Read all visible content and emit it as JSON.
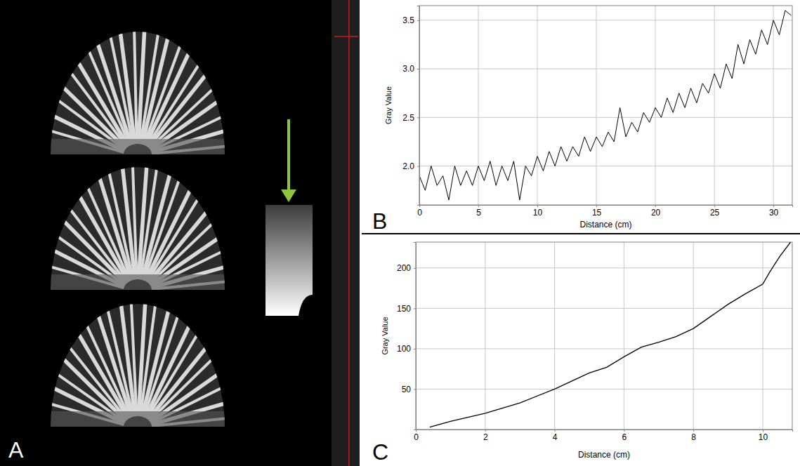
{
  "image_panel": {
    "panel_label": "A"
  },
  "chart_data": [
    {
      "type": "line",
      "panel_label": "B",
      "x_label": "Distance (cm)",
      "y_label": "Gray Value",
      "color": "#000000",
      "grid": true,
      "x": [
        0,
        0.5,
        1,
        1.5,
        2,
        2.5,
        3,
        3.5,
        4,
        4.5,
        5,
        5.5,
        6,
        6.5,
        7,
        7.5,
        8,
        8.5,
        9,
        9.5,
        10,
        10.5,
        11,
        11.5,
        12,
        12.5,
        13,
        13.5,
        14,
        14.5,
        15,
        15.5,
        16,
        16.5,
        17,
        17.5,
        18,
        18.5,
        19,
        19.5,
        20,
        20.5,
        21,
        21.5,
        22,
        22.5,
        23,
        23.5,
        24,
        24.5,
        25,
        25.5,
        26,
        26.5,
        27,
        27.5,
        28,
        28.5,
        29,
        29.5,
        30,
        30.5,
        31,
        31.5
      ],
      "values": [
        1.9,
        1.75,
        2.0,
        1.8,
        1.9,
        1.65,
        2.0,
        1.8,
        1.95,
        1.8,
        2.0,
        1.85,
        2.05,
        1.8,
        2.0,
        1.85,
        2.05,
        1.65,
        2.0,
        1.9,
        2.1,
        1.95,
        2.15,
        2.0,
        2.2,
        2.05,
        2.2,
        2.1,
        2.3,
        2.15,
        2.3,
        2.2,
        2.35,
        2.25,
        2.6,
        2.3,
        2.45,
        2.35,
        2.55,
        2.45,
        2.6,
        2.5,
        2.7,
        2.55,
        2.75,
        2.6,
        2.8,
        2.65,
        2.85,
        2.75,
        2.95,
        2.8,
        3.05,
        2.9,
        3.25,
        3.05,
        3.3,
        3.15,
        3.4,
        3.25,
        3.5,
        3.35,
        3.6,
        3.55
      ],
      "xlim": [
        0,
        31.6
      ],
      "xticks": [
        0,
        5,
        10,
        15,
        20,
        25,
        30
      ],
      "ylim": [
        1.6,
        3.65
      ],
      "yticks": [
        {
          "value": 2,
          "label": "2.0"
        },
        2.5,
        {
          "value": 3,
          "label": "3.0"
        },
        3.5
      ]
    },
    {
      "type": "line",
      "panel_label": "C",
      "x_label": "Distance (cm)",
      "y_label": "Gray Value",
      "color": "#000000",
      "grid": true,
      "x": [
        0.4,
        1,
        2,
        3,
        4,
        5,
        5.5,
        6,
        6.5,
        7,
        7.5,
        8,
        8.5,
        9,
        9.5,
        10,
        10.2,
        10.5,
        10.8
      ],
      "values": [
        3,
        10,
        20,
        33,
        50,
        70,
        77,
        90,
        102,
        108,
        115,
        125,
        140,
        155,
        168,
        180,
        195,
        215,
        232
      ],
      "xlim": [
        0,
        10.85
      ],
      "xticks": [
        0,
        2,
        4,
        6,
        8,
        10
      ],
      "ylim": [
        0,
        232
      ],
      "yticks": [
        50,
        100,
        150,
        200
      ]
    }
  ]
}
